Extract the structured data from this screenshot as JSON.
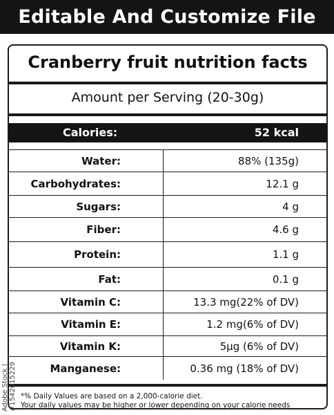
{
  "banner": "Editable And Customize File",
  "card": {
    "title": "Cranberry fruit nutrition facts",
    "serving": "Amount per Serving (20-30g)",
    "calories_label": "Calories:",
    "calories_value": "52 kcal",
    "nutrients": [
      {
        "label": "Water:",
        "value": "88% (135g)"
      },
      {
        "label": "Carbohydrates:",
        "value": "12.1 g"
      },
      {
        "label": "Sugars:",
        "value": "4 g"
      },
      {
        "label": "Fiber:",
        "value": "4.6 g"
      },
      {
        "label": "Protein:",
        "value": "1.1 g"
      },
      {
        "label": "Fat:",
        "value": "0.1 g"
      },
      {
        "label": "Vitamin C:",
        "value": "13.3 mg(22% of DV)"
      },
      {
        "label": "Vitamin E:",
        "value": "1.2 mg(6% of DV)"
      },
      {
        "label": "Vitamin K:",
        "value": "5µg (6% of DV)"
      },
      {
        "label": "Manganese:",
        "value": "0.36 mg (18% of DV)"
      }
    ],
    "footnote_1": "*% Daily Values are based on a 2,000-calorie diet.",
    "footnote_2": "Your daily values may be higher or lower depending on your calorie needs"
  },
  "watermark": "Adobe Stock | #1542015229"
}
